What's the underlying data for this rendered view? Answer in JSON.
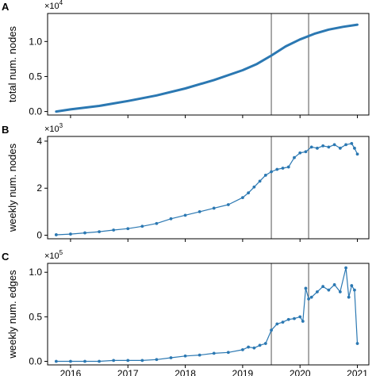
{
  "chart_data": [
    {
      "panel": "A",
      "type": "line",
      "ylabel": "total num. nodes",
      "y_multiplier_base": "×10",
      "y_multiplier_exp": "4",
      "ylim": [
        -0.05,
        1.4
      ],
      "yticks": [
        0.0,
        0.5,
        1.0
      ],
      "ytick_labels": [
        "0.0",
        "0.5",
        "1.0"
      ],
      "markers": false,
      "series": [
        {
          "color": "#2b78b2",
          "x": [
            2015.75,
            2016.0,
            2016.5,
            2017.0,
            2017.5,
            2018.0,
            2018.5,
            2019.0,
            2019.25,
            2019.5,
            2019.75,
            2020.0,
            2020.25,
            2020.5,
            2020.75,
            2021.0
          ],
          "y": [
            0.0,
            0.03,
            0.08,
            0.15,
            0.23,
            0.33,
            0.45,
            0.59,
            0.68,
            0.8,
            0.93,
            1.03,
            1.11,
            1.17,
            1.21,
            1.24
          ]
        }
      ]
    },
    {
      "panel": "B",
      "type": "line",
      "ylabel": "weekly num. nodes",
      "y_multiplier_base": "×10",
      "y_multiplier_exp": "3",
      "ylim": [
        -0.15,
        4.2
      ],
      "yticks": [
        0,
        2,
        4
      ],
      "ytick_labels": [
        "0",
        "2",
        "4"
      ],
      "markers": true,
      "series": [
        {
          "color": "#2b78b2",
          "x": [
            2015.75,
            2016.0,
            2016.25,
            2016.5,
            2016.75,
            2017.0,
            2017.25,
            2017.5,
            2017.75,
            2018.0,
            2018.25,
            2018.5,
            2018.75,
            2019.0,
            2019.1,
            2019.2,
            2019.3,
            2019.4,
            2019.5,
            2019.6,
            2019.7,
            2019.8,
            2019.9,
            2020.0,
            2020.1,
            2020.2,
            2020.3,
            2020.4,
            2020.5,
            2020.6,
            2020.7,
            2020.8,
            2020.9,
            2020.95,
            2021.0
          ],
          "y": [
            0.02,
            0.05,
            0.1,
            0.15,
            0.22,
            0.28,
            0.38,
            0.5,
            0.7,
            0.85,
            1.0,
            1.15,
            1.3,
            1.6,
            1.8,
            2.05,
            2.3,
            2.55,
            2.7,
            2.8,
            2.85,
            2.9,
            3.3,
            3.5,
            3.55,
            3.75,
            3.7,
            3.8,
            3.75,
            3.85,
            3.7,
            3.85,
            3.9,
            3.7,
            3.45
          ]
        }
      ]
    },
    {
      "panel": "C",
      "type": "line",
      "ylabel": "weekly num. edges",
      "y_multiplier_base": "×10",
      "y_multiplier_exp": "5",
      "ylim": [
        -0.04,
        1.1
      ],
      "yticks": [
        0.0,
        0.5,
        1.0
      ],
      "ytick_labels": [
        "0.0",
        "0.5",
        "1.0"
      ],
      "xlim": [
        2015.6,
        2021.2
      ],
      "xticks": [
        2016,
        2017,
        2018,
        2019,
        2020,
        2021
      ],
      "xtick_labels": [
        "2016",
        "2017",
        "2018",
        "2019",
        "2020",
        "2021"
      ],
      "markers": true,
      "series": [
        {
          "color": "#2b78b2",
          "x": [
            2015.75,
            2016.0,
            2016.25,
            2016.5,
            2016.75,
            2017.0,
            2017.25,
            2017.5,
            2017.75,
            2018.0,
            2018.25,
            2018.5,
            2018.75,
            2019.0,
            2019.1,
            2019.2,
            2019.3,
            2019.4,
            2019.5,
            2019.6,
            2019.7,
            2019.8,
            2019.9,
            2020.0,
            2020.05,
            2020.1,
            2020.15,
            2020.2,
            2020.3,
            2020.4,
            2020.5,
            2020.6,
            2020.7,
            2020.8,
            2020.85,
            2020.9,
            2020.95,
            2021.0
          ],
          "y": [
            0.0,
            0.0,
            0.0,
            0.0,
            0.01,
            0.01,
            0.01,
            0.02,
            0.04,
            0.06,
            0.07,
            0.09,
            0.1,
            0.13,
            0.16,
            0.15,
            0.18,
            0.2,
            0.35,
            0.42,
            0.44,
            0.47,
            0.48,
            0.5,
            0.45,
            0.82,
            0.7,
            0.72,
            0.78,
            0.84,
            0.8,
            0.86,
            0.78,
            1.05,
            0.72,
            0.85,
            0.8,
            0.2
          ]
        }
      ]
    }
  ],
  "vlines_x": [
    2019.5,
    2020.15
  ]
}
